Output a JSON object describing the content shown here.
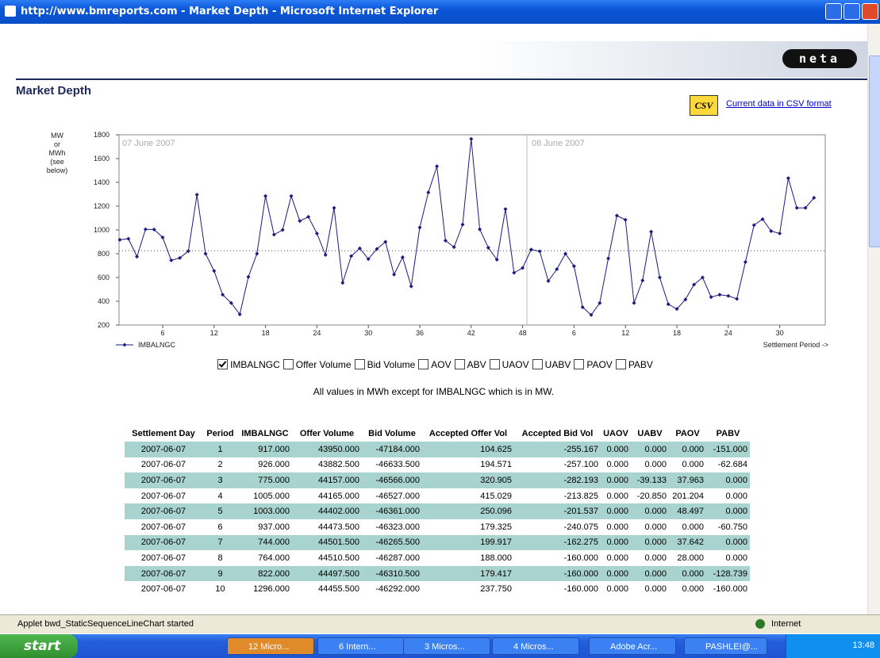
{
  "window": {
    "title": "http://www.bmreports.com - Market Depth - Microsoft Internet Explorer"
  },
  "header": {
    "logo": "neta",
    "title": "Market Depth",
    "csv_icon": "CSV",
    "csv_link": "Current data in CSV format"
  },
  "chart_data": {
    "type": "line",
    "ylabel": [
      "MW",
      "or",
      "MWh",
      "(see",
      "below)"
    ],
    "xlabel": "Settlement Period ->",
    "annotations": [
      "07 June 2007",
      "08 June 2007"
    ],
    "categories": [
      null,
      null,
      null,
      null,
      null,
      6,
      null,
      null,
      null,
      null,
      null,
      12,
      null,
      null,
      null,
      null,
      null,
      18,
      null,
      null,
      null,
      null,
      null,
      24,
      null,
      null,
      null,
      null,
      null,
      30,
      null,
      null,
      null,
      null,
      null,
      36,
      null,
      null,
      null,
      null,
      null,
      42,
      null,
      null,
      null,
      null,
      null,
      48,
      null,
      null,
      null,
      null,
      null,
      6,
      null,
      null,
      null,
      null,
      null,
      12,
      null,
      null,
      null,
      null,
      null,
      18,
      null,
      null,
      null,
      null,
      null,
      24,
      null,
      null,
      null,
      null,
      null,
      30,
      null,
      null,
      null,
      null
    ],
    "series": [
      {
        "name": "IMBALNGC",
        "color": "#1a1a80",
        "values": [
          917,
          926,
          775,
          1005,
          1003,
          937,
          744,
          764,
          822,
          1296,
          800,
          655,
          455,
          385,
          290,
          605,
          800,
          1285,
          960,
          1000,
          1285,
          1075,
          1110,
          970,
          790,
          1185,
          555,
          780,
          845,
          755,
          840,
          900,
          625,
          770,
          525,
          1020,
          1315,
          1535,
          910,
          855,
          1045,
          1765,
          1005,
          850,
          750,
          1175,
          640,
          680,
          835,
          820,
          570,
          670,
          800,
          695,
          350,
          285,
          385,
          760,
          1120,
          1085,
          385,
          575,
          985,
          600,
          375,
          335,
          415,
          540,
          600,
          435,
          455,
          445,
          420,
          730,
          1040,
          1090,
          990,
          970,
          1435,
          1185,
          1185,
          1270
        ]
      }
    ],
    "reference_line": 825,
    "ylim": [
      200,
      1800
    ],
    "yticks": [
      200,
      400,
      600,
      800,
      1000,
      1200,
      1400,
      1600,
      1800
    ],
    "grid": false
  },
  "controls": {
    "checkboxes": [
      {
        "label": "IMBALNGC",
        "checked": true
      },
      {
        "label": "Offer Volume",
        "checked": false
      },
      {
        "label": "Bid Volume",
        "checked": false
      },
      {
        "label": "AOV",
        "checked": false
      },
      {
        "label": "ABV",
        "checked": false
      },
      {
        "label": "UAOV",
        "checked": false
      },
      {
        "label": "UABV",
        "checked": false
      },
      {
        "label": "PAOV",
        "checked": false
      },
      {
        "label": "PABV",
        "checked": false
      }
    ],
    "note": "All values in MWh except for IMBALNGC which is in MW."
  },
  "table": {
    "columns": [
      "Settlement Day",
      "Period",
      "IMBALNGC",
      "Offer Volume",
      "Bid Volume",
      "Accepted Offer Vol",
      "Accepted Bid Vol",
      "UAOV",
      "UABV",
      "PAOV",
      "PABV"
    ],
    "rows": [
      [
        "2007-06-07",
        "1",
        "917.000",
        "43950.000",
        "-47184.000",
        "104.625",
        "-255.167",
        "0.000",
        "0.000",
        "0.000",
        "-151.000"
      ],
      [
        "2007-06-07",
        "2",
        "926.000",
        "43882.500",
        "-46633.500",
        "194.571",
        "-257.100",
        "0.000",
        "0.000",
        "0.000",
        "-62.684"
      ],
      [
        "2007-06-07",
        "3",
        "775.000",
        "44157.000",
        "-46566.000",
        "320.905",
        "-282.193",
        "0.000",
        "-39.133",
        "37.963",
        "0.000"
      ],
      [
        "2007-06-07",
        "4",
        "1005.000",
        "44165.000",
        "-46527.000",
        "415.029",
        "-213.825",
        "0.000",
        "-20.850",
        "201.204",
        "0.000"
      ],
      [
        "2007-06-07",
        "5",
        "1003.000",
        "44402.000",
        "-46361.000",
        "250.096",
        "-201.537",
        "0.000",
        "0.000",
        "48.497",
        "0.000"
      ],
      [
        "2007-06-07",
        "6",
        "937.000",
        "44473.500",
        "-46323.000",
        "179.325",
        "-240.075",
        "0.000",
        "0.000",
        "0.000",
        "-60.750"
      ],
      [
        "2007-06-07",
        "7",
        "744.000",
        "44501.500",
        "-46265.500",
        "199.917",
        "-162.275",
        "0.000",
        "0.000",
        "37.642",
        "0.000"
      ],
      [
        "2007-06-07",
        "8",
        "764.000",
        "44510.500",
        "-46287.000",
        "188.000",
        "-160.000",
        "0.000",
        "0.000",
        "28.000",
        "0.000"
      ],
      [
        "2007-06-07",
        "9",
        "822.000",
        "44497.500",
        "-46310.500",
        "179.417",
        "-160.000",
        "0.000",
        "0.000",
        "0.000",
        "-128.739"
      ],
      [
        "2007-06-07",
        "10",
        "1296.000",
        "44455.500",
        "-46292.000",
        "237.750",
        "-160.000",
        "0.000",
        "0.000",
        "0.000",
        "-160.000"
      ]
    ]
  },
  "status_bar": {
    "message": "Applet bwd_StaticSequenceLineChart started",
    "zone": "Internet"
  },
  "taskbar": {
    "start": "start",
    "items": [
      "12 Micro...",
      "6 Intern...",
      "3 Micros...",
      "4 Micros...",
      "Adobe Acr...",
      "PASHLEI@..."
    ],
    "clock": "13:48"
  }
}
